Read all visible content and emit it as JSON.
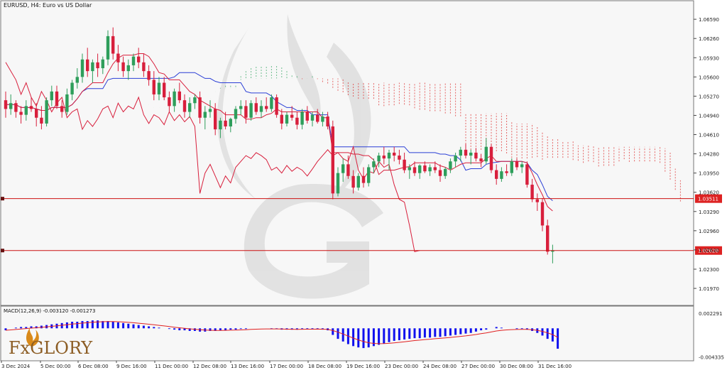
{
  "header": {
    "symbol": "EURUSD,",
    "timeframe": "H4:",
    "description": "Euro vs US Dollar"
  },
  "price_axis": {
    "labels": [
      "1.06590",
      "1.06260",
      "1.05930",
      "1.05600",
      "1.05270",
      "1.04940",
      "1.04610",
      "1.04280",
      "1.03950",
      "1.03620",
      "1.03290",
      "1.02960",
      "1.02630",
      "1.02300",
      "1.01970"
    ],
    "values": [
      1.0659,
      1.0626,
      1.0593,
      1.056,
      1.0527,
      1.0494,
      1.0461,
      1.0428,
      1.0395,
      1.0362,
      1.0329,
      1.0296,
      1.0263,
      1.023,
      1.0197
    ]
  },
  "levels": [
    {
      "label": "1.03511",
      "value": 1.03511
    },
    {
      "label": "1.02620",
      "value": 1.0262
    }
  ],
  "time_axis": {
    "labels": [
      "3 Dec 2024",
      "5 Dec 00:00",
      "6 Dec 08:00",
      "9 Dec 16:00",
      "11 Dec 00:00",
      "12 Dec 08:00",
      "13 Dec 16:00",
      "17 Dec 00:00",
      "18 Dec 08:00",
      "19 Dec 16:00",
      "23 Dec 00:00",
      "24 Dec 08:00",
      "27 Dec 00:00",
      "30 Dec 08:00",
      "31 Dec 16:00"
    ]
  },
  "macd": {
    "title": "MACD(12,26,9) -0.003120 -0.001273",
    "axis_labels": [
      "0.002291",
      "-0.004335"
    ],
    "axis_values": [
      0.002291,
      -0.004335
    ]
  },
  "logo": {
    "text": "FxGLORY"
  },
  "colors": {
    "bull": "#2e9e5b",
    "bear": "#d81f3c",
    "kijun": "#2b3fd6",
    "tenkan": "#d81f3c",
    "cloud_bull": "#4caf74",
    "cloud_bear": "#e04040",
    "macd_hist": "#1010ee",
    "macd_signal": "#e02020",
    "level_line": "#cc1111",
    "level_label_bg": "#dd2222"
  },
  "chart_data": {
    "type": "candlestick",
    "price_range": [
      1.018,
      1.0675
    ],
    "candles": [
      [
        1.052,
        1.0535,
        1.049,
        1.0505
      ],
      [
        1.0505,
        1.053,
        1.0495,
        1.0515
      ],
      [
        1.0515,
        1.052,
        1.049,
        1.05
      ],
      [
        1.05,
        1.051,
        1.048,
        1.0495
      ],
      [
        1.0495,
        1.052,
        1.0485,
        1.051
      ],
      [
        1.051,
        1.0525,
        1.05,
        1.0505
      ],
      [
        1.0505,
        1.0515,
        1.0475,
        1.049
      ],
      [
        1.049,
        1.051,
        1.047,
        1.048
      ],
      [
        1.048,
        1.0525,
        1.0475,
        1.052
      ],
      [
        1.052,
        1.0545,
        1.051,
        1.0535
      ],
      [
        1.0535,
        1.0545,
        1.0505,
        1.051
      ],
      [
        1.051,
        1.052,
        1.049,
        1.05
      ],
      [
        1.05,
        1.054,
        1.0495,
        1.053
      ],
      [
        1.053,
        1.0555,
        1.052,
        1.055
      ],
      [
        1.055,
        1.0575,
        1.054,
        1.056
      ],
      [
        1.056,
        1.06,
        1.055,
        1.059
      ],
      [
        1.059,
        1.061,
        1.056,
        1.057
      ],
      [
        1.057,
        1.059,
        1.055,
        1.0585
      ],
      [
        1.0585,
        1.06,
        1.056,
        1.0575
      ],
      [
        1.0575,
        1.0595,
        1.0565,
        1.059
      ],
      [
        1.059,
        1.064,
        1.058,
        1.063
      ],
      [
        1.063,
        1.0645,
        1.059,
        1.06
      ],
      [
        1.06,
        1.0615,
        1.057,
        1.0585
      ],
      [
        1.0585,
        1.0595,
        1.056,
        1.057
      ],
      [
        1.057,
        1.059,
        1.0555,
        1.058
      ],
      [
        1.058,
        1.06,
        1.057,
        1.0595
      ],
      [
        1.0595,
        1.061,
        1.0575,
        1.0585
      ],
      [
        1.0585,
        1.06,
        1.056,
        1.057
      ],
      [
        1.057,
        1.058,
        1.0545,
        1.0555
      ],
      [
        1.0555,
        1.057,
        1.052,
        1.053
      ],
      [
        1.053,
        1.056,
        1.052,
        1.055
      ],
      [
        1.055,
        1.056,
        1.052,
        1.0525
      ],
      [
        1.0525,
        1.0535,
        1.05,
        1.051
      ],
      [
        1.051,
        1.054,
        1.05,
        1.0535
      ],
      [
        1.0535,
        1.055,
        1.0515,
        1.052
      ],
      [
        1.052,
        1.053,
        1.049,
        1.05
      ],
      [
        1.05,
        1.0525,
        1.049,
        1.0515
      ],
      [
        1.0515,
        1.053,
        1.0505,
        1.0525
      ],
      [
        1.0525,
        1.0535,
        1.048,
        1.049
      ],
      [
        1.049,
        1.051,
        1.047,
        1.05
      ],
      [
        1.05,
        1.052,
        1.049,
        1.0505
      ],
      [
        1.0505,
        1.0515,
        1.046,
        1.047
      ],
      [
        1.047,
        1.049,
        1.0455,
        1.0485
      ],
      [
        1.0485,
        1.05,
        1.047,
        1.0475
      ],
      [
        1.0475,
        1.049,
        1.0465,
        1.0488
      ],
      [
        1.0488,
        1.051,
        1.048,
        1.0505
      ],
      [
        1.0505,
        1.052,
        1.0495,
        1.051
      ],
      [
        1.051,
        1.052,
        1.048,
        1.049
      ],
      [
        1.049,
        1.052,
        1.0485,
        1.0515
      ],
      [
        1.0515,
        1.0525,
        1.0495,
        1.05
      ],
      [
        1.05,
        1.052,
        1.049,
        1.051
      ],
      [
        1.051,
        1.0525,
        1.05,
        1.0505
      ],
      [
        1.0505,
        1.053,
        1.05,
        1.0525
      ],
      [
        1.0525,
        1.053,
        1.049,
        1.0495
      ],
      [
        1.0495,
        1.0505,
        1.047,
        1.048
      ],
      [
        1.048,
        1.05,
        1.0475,
        1.0495
      ],
      [
        1.0495,
        1.051,
        1.0485,
        1.049
      ],
      [
        1.049,
        1.05,
        1.047,
        1.0478
      ],
      [
        1.0478,
        1.0505,
        1.047,
        1.05
      ],
      [
        1.05,
        1.051,
        1.048,
        1.0485
      ],
      [
        1.0485,
        1.05,
        1.0475,
        1.0495
      ],
      [
        1.0495,
        1.0505,
        1.048,
        1.0483
      ],
      [
        1.0483,
        1.05,
        1.0475,
        1.0492
      ],
      [
        1.0492,
        1.05,
        1.047,
        1.0475
      ],
      [
        1.0475,
        1.0485,
        1.035,
        1.036
      ],
      [
        1.036,
        1.0405,
        1.0355,
        1.0395
      ],
      [
        1.0395,
        1.042,
        1.038,
        1.041
      ],
      [
        1.041,
        1.0425,
        1.0385,
        1.039
      ],
      [
        1.039,
        1.04,
        1.036,
        1.037
      ],
      [
        1.037,
        1.0395,
        1.0365,
        1.039
      ],
      [
        1.039,
        1.0405,
        1.037,
        1.0378
      ],
      [
        1.0378,
        1.041,
        1.0372,
        1.0405
      ],
      [
        1.0405,
        1.042,
        1.0395,
        1.0415
      ],
      [
        1.0415,
        1.043,
        1.0405,
        1.0425
      ],
      [
        1.0425,
        1.044,
        1.041,
        1.042
      ],
      [
        1.042,
        1.0435,
        1.04,
        1.043
      ],
      [
        1.043,
        1.044,
        1.0415,
        1.0425
      ],
      [
        1.0425,
        1.0435,
        1.041,
        1.0418
      ],
      [
        1.0418,
        1.043,
        1.0395,
        1.04
      ],
      [
        1.04,
        1.041,
        1.0385,
        1.0405
      ],
      [
        1.0405,
        1.0415,
        1.039,
        1.0395
      ],
      [
        1.0395,
        1.041,
        1.0385,
        1.0408
      ],
      [
        1.0408,
        1.0415,
        1.0395,
        1.0398
      ],
      [
        1.0398,
        1.041,
        1.039,
        1.0405
      ],
      [
        1.0405,
        1.0415,
        1.0395,
        1.04
      ],
      [
        1.04,
        1.041,
        1.038,
        1.039
      ],
      [
        1.039,
        1.0405,
        1.0385,
        1.0402
      ],
      [
        1.0402,
        1.042,
        1.0395,
        1.0415
      ],
      [
        1.0415,
        1.043,
        1.0405,
        1.0425
      ],
      [
        1.0425,
        1.044,
        1.0415,
        1.0435
      ],
      [
        1.0435,
        1.0445,
        1.042,
        1.0425
      ],
      [
        1.0425,
        1.0435,
        1.041,
        1.043
      ],
      [
        1.043,
        1.0438,
        1.0415,
        1.042
      ],
      [
        1.042,
        1.0428,
        1.0405,
        1.0415
      ],
      [
        1.0415,
        1.0455,
        1.041,
        1.044
      ],
      [
        1.044,
        1.0445,
        1.0395,
        1.04
      ],
      [
        1.04,
        1.041,
        1.0375,
        1.0385
      ],
      [
        1.0385,
        1.0405,
        1.038,
        1.0398
      ],
      [
        1.0398,
        1.041,
        1.039,
        1.0395
      ],
      [
        1.0395,
        1.042,
        1.039,
        1.0415
      ],
      [
        1.0415,
        1.042,
        1.04,
        1.0405
      ],
      [
        1.0405,
        1.0415,
        1.0395,
        1.041
      ],
      [
        1.041,
        1.0415,
        1.037,
        1.0375
      ],
      [
        1.0375,
        1.0385,
        1.0345,
        1.035
      ],
      [
        1.035,
        1.036,
        1.033,
        1.0345
      ],
      [
        1.0345,
        1.0352,
        1.0295,
        1.0305
      ],
      [
        1.0305,
        1.0315,
        1.0255,
        1.026
      ],
      [
        1.026,
        1.0272,
        1.024,
        1.0262
      ]
    ],
    "macd_histogram": [
      -0.0003,
      0.0,
      0.0001,
      0.0002,
      0.0002,
      0.0003,
      0.0003,
      0.0004,
      0.0005,
      0.0006,
      0.0007,
      0.0008,
      0.0009,
      0.001,
      0.001,
      0.0011,
      0.0011,
      0.0012,
      0.0012,
      0.0011,
      0.0011,
      0.001,
      0.0009,
      0.0008,
      0.0007,
      0.0006,
      0.0005,
      0.0004,
      0.0003,
      0.0002,
      0.0001,
      0.0,
      -0.0001,
      -0.0002,
      -0.0003,
      -0.0003,
      -0.0004,
      -0.0004,
      -0.0005,
      -0.0005,
      -0.0004,
      -0.0004,
      -0.0003,
      -0.0003,
      -0.0002,
      -0.0002,
      -0.0001,
      -0.0001,
      0.0,
      0.0,
      0.0,
      0.0,
      -0.0001,
      -0.0001,
      -0.0002,
      -0.0002,
      -0.0002,
      -0.0002,
      -0.0001,
      -0.0001,
      -0.0001,
      -0.0001,
      -0.0002,
      -0.0003,
      -0.001,
      -0.0016,
      -0.002,
      -0.0024,
      -0.0027,
      -0.0029,
      -0.003,
      -0.0029,
      -0.0027,
      -0.0025,
      -0.0023,
      -0.0021,
      -0.0019,
      -0.0018,
      -0.0017,
      -0.0016,
      -0.0015,
      -0.0015,
      -0.0014,
      -0.0014,
      -0.0013,
      -0.0013,
      -0.0012,
      -0.0011,
      -0.001,
      -0.0009,
      -0.0008,
      -0.0007,
      -0.0005,
      -0.0003,
      -0.0002,
      0.0,
      0.0002,
      0.0001,
      0.0,
      0.0,
      -0.0001,
      -0.0001,
      -0.0002,
      -0.0004,
      -0.0007,
      -0.0011,
      -0.0016,
      -0.002,
      -0.0031
    ],
    "macd_range": [
      -0.0045,
      0.0024
    ]
  }
}
